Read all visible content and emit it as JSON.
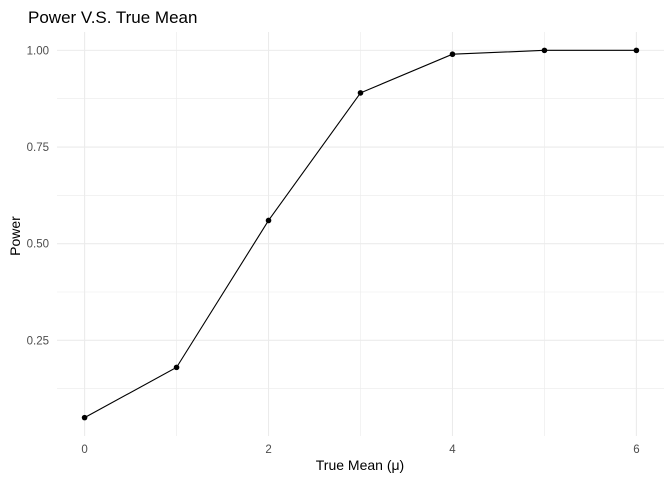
{
  "chart_data": {
    "type": "line",
    "title": "Power V.S. True Mean",
    "xlabel": "True Mean (μ)",
    "ylabel": "Power",
    "x": [
      0,
      1,
      2,
      3,
      4,
      5,
      6
    ],
    "series": [
      {
        "values": [
          0.05,
          0.18,
          0.56,
          0.89,
          0.99,
          1.0,
          1.0
        ]
      }
    ],
    "xlim": [
      -0.3,
      6.3
    ],
    "ylim": [
      0.0025,
      1.0475
    ],
    "x_ticks": [
      0,
      2,
      4,
      6
    ],
    "x_tick_labels": [
      "0",
      "2",
      "4",
      "6"
    ],
    "y_ticks": [
      0.25,
      0.5,
      0.75,
      1.0
    ],
    "y_tick_labels": [
      "0.25",
      "0.50",
      "0.75",
      "1.00"
    ],
    "grid": true,
    "legend": "none",
    "colors": {
      "line": "#000000",
      "point": "#000000",
      "grid": "#ebebeb",
      "text": "#4d4d4d",
      "title": "#000000"
    }
  }
}
